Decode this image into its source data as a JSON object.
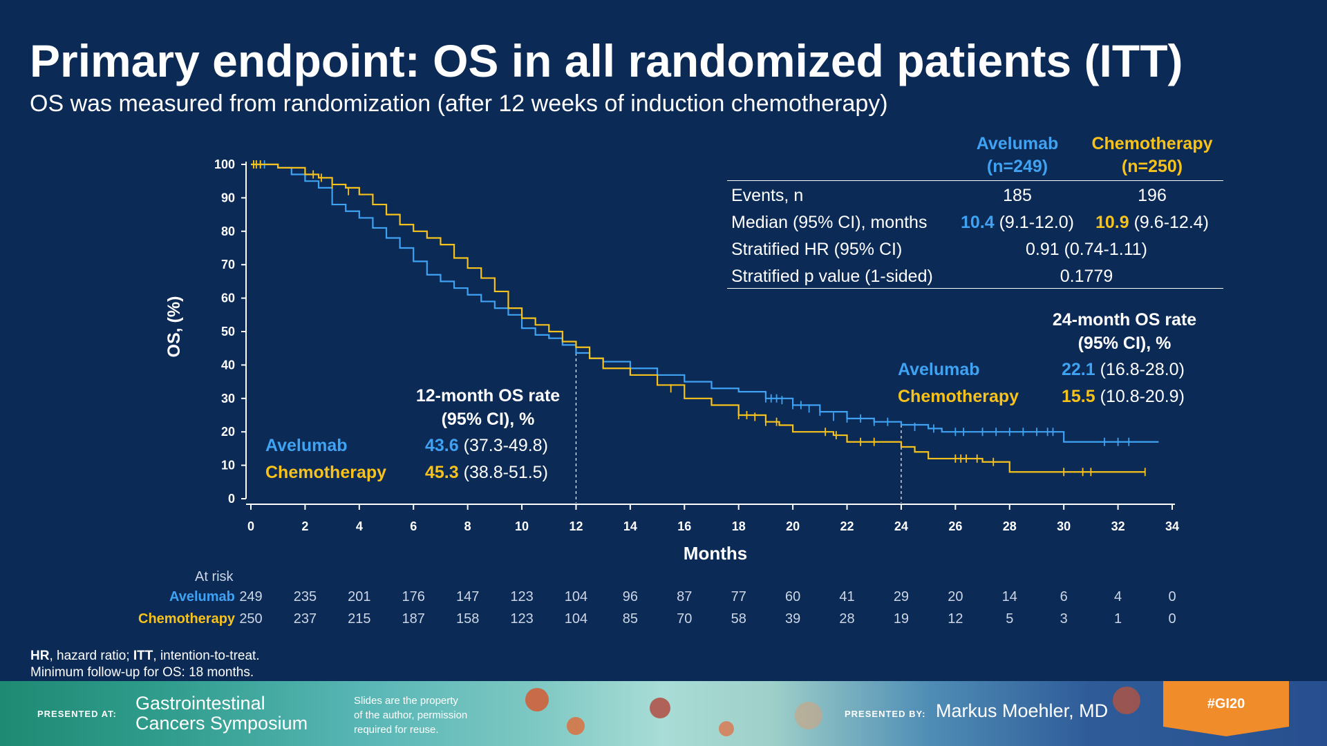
{
  "slide": {
    "title": "Primary endpoint: OS in all randomized patients (ITT)",
    "subtitle": "OS was measured from randomization (after 12 weeks of induction chemotherapy)"
  },
  "colors": {
    "background": "#0b2a56",
    "avelumab": "#3fa2f3",
    "chemotherapy": "#f7c21b",
    "axis": "#ffffff"
  },
  "stats_table": {
    "header_avelumab": [
      "Avelumab",
      "(n=249)"
    ],
    "header_chemo": [
      "Chemotherapy",
      "(n=250)"
    ],
    "rows": [
      {
        "label": "Events, n",
        "avelumab": "185",
        "chemo": "196"
      },
      {
        "label": "Median (95% CI), months",
        "avelumab_bold": "10.4",
        "avelumab": "(9.1-12.0)",
        "chemo_bold": "10.9",
        "chemo": "(9.6-12.4)"
      },
      {
        "label": "Stratified HR (95% CI)",
        "shared": "0.91 (0.74-1.11)"
      },
      {
        "label": "Stratified p value (1-sided)",
        "shared": "0.1779"
      }
    ]
  },
  "rate12": {
    "heading": [
      "12-month OS rate",
      "(95% CI), %"
    ],
    "avelumab_label": "Avelumab",
    "avelumab_value": "43.6",
    "avelumab_ci": "(37.3-49.8)",
    "chemo_label": "Chemotherapy",
    "chemo_value": "45.3",
    "chemo_ci": "(38.8-51.5)"
  },
  "rate24": {
    "heading": [
      "24-month OS rate",
      "(95% CI), %"
    ],
    "avelumab_label": "Avelumab",
    "avelumab_value": "22.1",
    "avelumab_ci": "(16.8-28.0)",
    "chemo_label": "Chemotherapy",
    "chemo_value": "15.5",
    "chemo_ci": "(10.8-20.9)"
  },
  "at_risk": {
    "title": "At risk",
    "avelumab_label": "Avelumab",
    "chemo_label": "Chemotherapy",
    "avelumab": [
      "249",
      "235",
      "201",
      "176",
      "147",
      "123",
      "104",
      "96",
      "87",
      "77",
      "60",
      "41",
      "29",
      "20",
      "14",
      "6",
      "4",
      "0"
    ],
    "chemo": [
      "250",
      "237",
      "215",
      "187",
      "158",
      "123",
      "104",
      "85",
      "70",
      "58",
      "39",
      "28",
      "19",
      "12",
      "5",
      "3",
      "1",
      "0"
    ]
  },
  "footnote": {
    "line1_parts": [
      {
        "b": "HR"
      },
      {
        "t": ", hazard ratio; "
      },
      {
        "b": "ITT"
      },
      {
        "t": ", intention-to-treat."
      }
    ],
    "line2": "Minimum  follow-up for OS: 18 months."
  },
  "banner": {
    "presented_at": "PRESENTED AT:",
    "symposium": [
      "Gastrointestinal",
      "Cancers Symposium"
    ],
    "property_note": [
      "Slides are the property",
      "of the author, permission",
      "required for reuse."
    ],
    "presented_by": "PRESENTED BY:",
    "presenter": "Markus Moehler, MD",
    "hashtag": "#GI20"
  },
  "chart_data": {
    "type": "line",
    "subtype": "kaplan-meier step",
    "xlabel": "Months",
    "ylabel": "OS, (%)",
    "xlim": [
      0,
      34
    ],
    "ylim": [
      0,
      100
    ],
    "x_ticks": [
      "0",
      "2",
      "4",
      "6",
      "8",
      "10",
      "12",
      "14",
      "16",
      "18",
      "20",
      "22",
      "24",
      "26",
      "28",
      "30",
      "32",
      "34"
    ],
    "y_ticks": [
      "0",
      "10",
      "20",
      "30",
      "40",
      "50",
      "60",
      "70",
      "80",
      "90",
      "100"
    ],
    "reference_lines_x": [
      12,
      24
    ],
    "series": [
      {
        "name": "Avelumab",
        "color": "#3fa2f3",
        "points": [
          [
            0,
            100
          ],
          [
            1,
            99
          ],
          [
            1.5,
            97
          ],
          [
            2,
            95
          ],
          [
            2.5,
            93
          ],
          [
            3,
            88
          ],
          [
            3.5,
            86
          ],
          [
            4,
            84
          ],
          [
            4.5,
            81
          ],
          [
            5,
            78
          ],
          [
            5.5,
            75
          ],
          [
            6,
            71
          ],
          [
            6.5,
            67
          ],
          [
            7,
            65
          ],
          [
            7.5,
            63
          ],
          [
            8,
            61
          ],
          [
            8.5,
            59
          ],
          [
            9,
            57
          ],
          [
            9.5,
            55
          ],
          [
            10,
            51
          ],
          [
            10.5,
            49
          ],
          [
            11,
            48
          ],
          [
            11.5,
            46
          ],
          [
            12,
            43.6
          ],
          [
            12.5,
            42
          ],
          [
            13,
            41
          ],
          [
            14,
            39
          ],
          [
            15,
            37
          ],
          [
            16,
            35
          ],
          [
            17,
            33
          ],
          [
            18,
            32
          ],
          [
            19,
            30
          ],
          [
            20,
            28
          ],
          [
            21,
            26
          ],
          [
            22,
            24
          ],
          [
            23,
            23
          ],
          [
            24,
            22.1
          ],
          [
            25,
            21
          ],
          [
            25.5,
            20
          ],
          [
            27,
            20
          ],
          [
            28,
            20
          ],
          [
            29,
            20
          ],
          [
            29.8,
            20
          ],
          [
            30,
            17
          ],
          [
            31,
            17
          ],
          [
            32,
            17
          ],
          [
            33,
            17
          ],
          [
            33.5,
            17
          ]
        ],
        "censor": [
          [
            0.1,
            100
          ],
          [
            0.2,
            100
          ],
          [
            0.35,
            100
          ],
          [
            0.5,
            100
          ],
          [
            19,
            30
          ],
          [
            19.2,
            30
          ],
          [
            19.4,
            30
          ],
          [
            19.6,
            29.5
          ],
          [
            20,
            28
          ],
          [
            20.3,
            28
          ],
          [
            20.6,
            27
          ],
          [
            21,
            26
          ],
          [
            21.5,
            24.5
          ],
          [
            22,
            24
          ],
          [
            22.5,
            24
          ],
          [
            23,
            23
          ],
          [
            23.5,
            23
          ],
          [
            24.5,
            21.5
          ],
          [
            25.2,
            21
          ],
          [
            26,
            20
          ],
          [
            26.3,
            20
          ],
          [
            27,
            20
          ],
          [
            27.5,
            20
          ],
          [
            28,
            20
          ],
          [
            28.5,
            20
          ],
          [
            29,
            20
          ],
          [
            29.4,
            20
          ],
          [
            29.6,
            20
          ],
          [
            31.5,
            17
          ],
          [
            32,
            17
          ],
          [
            32.4,
            17
          ]
        ]
      },
      {
        "name": "Chemotherapy",
        "color": "#f7c21b",
        "points": [
          [
            0,
            100
          ],
          [
            1,
            99
          ],
          [
            2,
            97
          ],
          [
            2.5,
            96
          ],
          [
            3,
            94
          ],
          [
            3.5,
            93
          ],
          [
            4,
            91
          ],
          [
            4.5,
            88
          ],
          [
            5,
            85
          ],
          [
            5.5,
            82
          ],
          [
            6,
            80
          ],
          [
            6.5,
            78
          ],
          [
            7,
            76
          ],
          [
            7.5,
            72
          ],
          [
            8,
            69
          ],
          [
            8.5,
            66
          ],
          [
            9,
            62
          ],
          [
            9.5,
            57
          ],
          [
            10,
            54
          ],
          [
            10.5,
            52
          ],
          [
            11,
            50
          ],
          [
            11.5,
            47
          ],
          [
            12,
            45.3
          ],
          [
            12.5,
            42
          ],
          [
            13,
            39
          ],
          [
            14,
            37
          ],
          [
            15,
            34
          ],
          [
            16,
            30
          ],
          [
            17,
            28
          ],
          [
            18,
            25
          ],
          [
            19,
            23
          ],
          [
            19.5,
            22
          ],
          [
            20,
            20
          ],
          [
            21,
            20
          ],
          [
            21.5,
            19
          ],
          [
            22,
            17
          ],
          [
            23,
            17
          ],
          [
            24,
            15.5
          ],
          [
            24.5,
            14
          ],
          [
            25,
            12
          ],
          [
            26,
            12
          ],
          [
            27,
            11
          ],
          [
            28,
            8
          ],
          [
            30,
            8
          ],
          [
            31,
            8
          ],
          [
            32,
            8
          ],
          [
            33,
            8
          ]
        ],
        "censor": [
          [
            0.1,
            100
          ],
          [
            0.2,
            100
          ],
          [
            0.35,
            100
          ],
          [
            2.3,
            97
          ],
          [
            2.6,
            96
          ],
          [
            3,
            94
          ],
          [
            3.6,
            92
          ],
          [
            15.5,
            33
          ],
          [
            18,
            25
          ],
          [
            18.3,
            25
          ],
          [
            18.6,
            24.5
          ],
          [
            19,
            23
          ],
          [
            19.4,
            23
          ],
          [
            21.2,
            20
          ],
          [
            21.6,
            19
          ],
          [
            22.5,
            17
          ],
          [
            23,
            17
          ],
          [
            26,
            12
          ],
          [
            26.2,
            12
          ],
          [
            26.4,
            12
          ],
          [
            26.8,
            12
          ],
          [
            27.4,
            11
          ],
          [
            30,
            8
          ],
          [
            30.7,
            8
          ],
          [
            31,
            8
          ],
          [
            33,
            8
          ]
        ]
      }
    ]
  }
}
